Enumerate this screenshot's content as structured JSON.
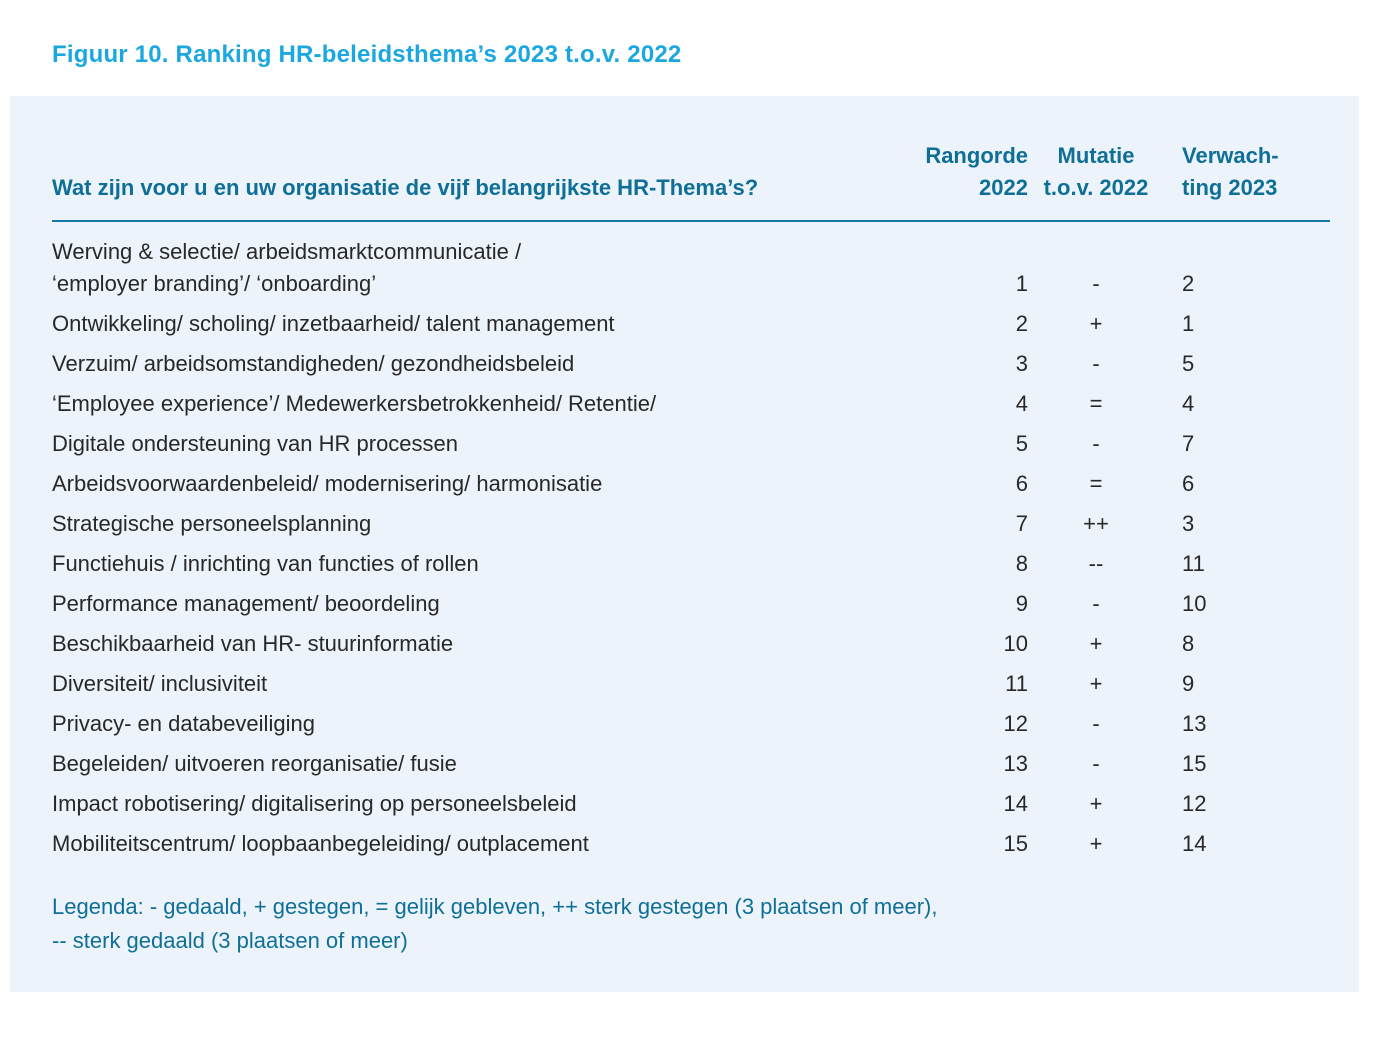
{
  "figure": {
    "title": "Figuur 10. Ranking HR-beleidsthema’s 2023 t.o.v. 2022"
  },
  "table": {
    "question": "Wat zijn voor u en uw organisatie de vijf belangrijkste HR-Thema’s?",
    "columns": {
      "rangorde": {
        "line1": "Rangorde",
        "line2": "2022"
      },
      "mutatie": {
        "line1": "Mutatie",
        "line2": "t.o.v. 2022"
      },
      "verwachting": {
        "line1": "Verwach-",
        "line2": "ting 2023"
      }
    },
    "rows": [
      {
        "theme": "Werving & selectie/ arbeidsmarktcommunicatie /\n‘employer branding’/ ‘onboarding’",
        "rangorde_2022": "1",
        "mutatie": "-",
        "verwachting_2023": "2"
      },
      {
        "theme": "Ontwikkeling/ scholing/ inzetbaarheid/ talent management",
        "rangorde_2022": "2",
        "mutatie": "+",
        "verwachting_2023": "1"
      },
      {
        "theme": "Verzuim/ arbeidsomstandigheden/ gezondheidsbeleid",
        "rangorde_2022": "3",
        "mutatie": "-",
        "verwachting_2023": "5"
      },
      {
        "theme": "‘Employee experience’/ Medewerkersbetrokkenheid/ Retentie/",
        "rangorde_2022": "4",
        "mutatie": "=",
        "verwachting_2023": "4"
      },
      {
        "theme": "Digitale ondersteuning van HR processen",
        "rangorde_2022": "5",
        "mutatie": "-",
        "verwachting_2023": "7"
      },
      {
        "theme": "Arbeidsvoorwaardenbeleid/ modernisering/ harmonisatie",
        "rangorde_2022": "6",
        "mutatie": "=",
        "verwachting_2023": "6"
      },
      {
        "theme": "Strategische personeelsplanning",
        "rangorde_2022": "7",
        "mutatie": "++",
        "verwachting_2023": "3"
      },
      {
        "theme": "Functiehuis / inrichting van functies of rollen",
        "rangorde_2022": "8",
        "mutatie": "--",
        "verwachting_2023": "11"
      },
      {
        "theme": "Performance management/ beoordeling",
        "rangorde_2022": "9",
        "mutatie": "-",
        "verwachting_2023": "10"
      },
      {
        "theme": "Beschikbaarheid van HR- stuurinformatie",
        "rangorde_2022": "10",
        "mutatie": "+",
        "verwachting_2023": "8"
      },
      {
        "theme": "Diversiteit/ inclusiviteit",
        "rangorde_2022": "11",
        "mutatie": "+",
        "verwachting_2023": "9"
      },
      {
        "theme": "Privacy- en databeveiliging",
        "rangorde_2022": "12",
        "mutatie": "-",
        "verwachting_2023": "13"
      },
      {
        "theme": "Begeleiden/ uitvoeren reorganisatie/ fusie",
        "rangorde_2022": "13",
        "mutatie": "-",
        "verwachting_2023": "15"
      },
      {
        "theme": "Impact robotisering/ digitalisering op personeelsbeleid",
        "rangorde_2022": "14",
        "mutatie": "+",
        "verwachting_2023": "12"
      },
      {
        "theme": "Mobiliteitscentrum/ loopbaanbegeleiding/ outplacement",
        "rangorde_2022": "15",
        "mutatie": "+",
        "verwachting_2023": "14"
      }
    ]
  },
  "legend": {
    "line1": "Legenda: - gedaald, + gestegen, = gelijk gebleven, ++ sterk gestegen (3 plaatsen of meer),",
    "line2": "-- sterk gedaald (3 plaatsen of meer)"
  },
  "colors": {
    "title_blue": "#1BA7E0",
    "header_teal": "#0F6F96",
    "rule_teal": "#1878A4",
    "body_text": "#282828",
    "panel_background": "#ECF3FA",
    "page_background": "#FFFFFF"
  }
}
